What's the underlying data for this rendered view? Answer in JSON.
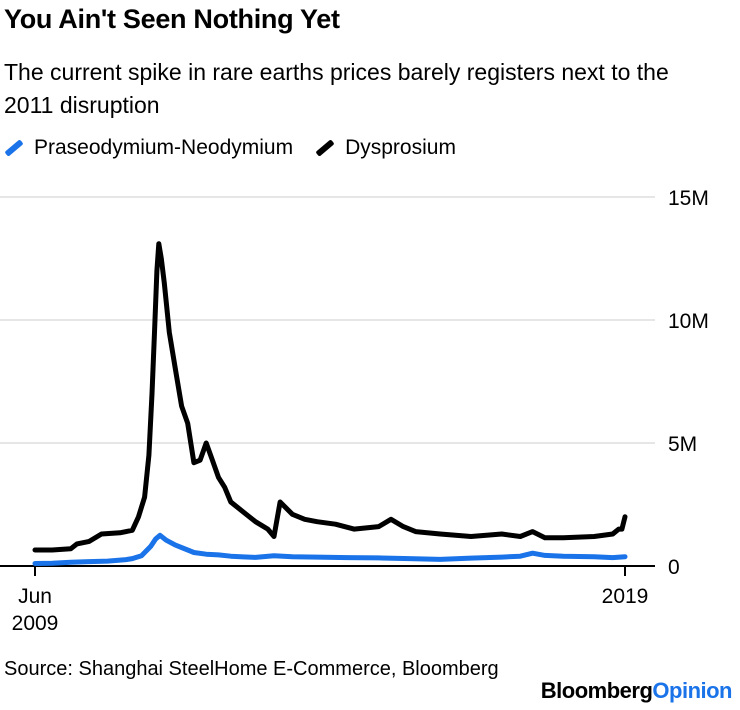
{
  "title": "You Ain't Seen Nothing Yet",
  "subtitle": "The current spike in rare earths prices barely registers next to the 2011 disruption",
  "source": "Source: Shanghai SteelHome E-Commerce, Bloomberg",
  "brand": {
    "part1": "Bloomberg",
    "part2": "Opinion"
  },
  "colors": {
    "prnd": "#1a73e8",
    "dy": "#000000",
    "grid": "#e6e6e6"
  },
  "chart_data": {
    "type": "line",
    "title": "You Ain't Seen Nothing Yet",
    "x_ticks": [
      {
        "x": 2009.42,
        "label": "Jun",
        "label2": "2009"
      },
      {
        "x": 2019.0,
        "label": "2019",
        "label2": ""
      }
    ],
    "y_ticks": [
      {
        "y": 0,
        "label": "0"
      },
      {
        "y": 5000000,
        "label": "5M"
      },
      {
        "y": 10000000,
        "label": "10M"
      },
      {
        "y": 15000000,
        "label": "15M"
      }
    ],
    "xlim": [
      2009.42,
      2019.0
    ],
    "ylim": [
      0,
      15000000
    ],
    "grid": true,
    "legend_position": "top-left",
    "series": [
      {
        "name": "Praseodymium-Neodymium",
        "color": "#1a73e8",
        "points": [
          [
            2009.42,
            100000
          ],
          [
            2009.7,
            110000
          ],
          [
            2010.0,
            150000
          ],
          [
            2010.3,
            180000
          ],
          [
            2010.6,
            200000
          ],
          [
            2010.9,
            260000
          ],
          [
            2011.0,
            300000
          ],
          [
            2011.15,
            420000
          ],
          [
            2011.3,
            800000
          ],
          [
            2011.38,
            1100000
          ],
          [
            2011.45,
            1250000
          ],
          [
            2011.55,
            1050000
          ],
          [
            2011.7,
            850000
          ],
          [
            2011.9,
            650000
          ],
          [
            2012.0,
            550000
          ],
          [
            2012.2,
            480000
          ],
          [
            2012.4,
            450000
          ],
          [
            2012.6,
            400000
          ],
          [
            2012.8,
            370000
          ],
          [
            2013.0,
            350000
          ],
          [
            2013.3,
            420000
          ],
          [
            2013.6,
            380000
          ],
          [
            2014.0,
            360000
          ],
          [
            2014.5,
            340000
          ],
          [
            2015.0,
            330000
          ],
          [
            2015.5,
            300000
          ],
          [
            2016.0,
            270000
          ],
          [
            2016.5,
            320000
          ],
          [
            2017.0,
            360000
          ],
          [
            2017.3,
            400000
          ],
          [
            2017.5,
            520000
          ],
          [
            2017.7,
            430000
          ],
          [
            2018.0,
            400000
          ],
          [
            2018.5,
            380000
          ],
          [
            2018.8,
            340000
          ],
          [
            2019.0,
            380000
          ]
        ]
      },
      {
        "name": "Dysprosium",
        "color": "#000000",
        "points": [
          [
            2009.42,
            650000
          ],
          [
            2009.7,
            650000
          ],
          [
            2010.0,
            700000
          ],
          [
            2010.1,
            900000
          ],
          [
            2010.3,
            1000000
          ],
          [
            2010.5,
            1300000
          ],
          [
            2010.8,
            1350000
          ],
          [
            2011.0,
            1450000
          ],
          [
            2011.1,
            2000000
          ],
          [
            2011.2,
            2800000
          ],
          [
            2011.27,
            4500000
          ],
          [
            2011.32,
            7000000
          ],
          [
            2011.36,
            9500000
          ],
          [
            2011.4,
            12000000
          ],
          [
            2011.43,
            13100000
          ],
          [
            2011.47,
            12500000
          ],
          [
            2011.52,
            11500000
          ],
          [
            2011.6,
            9500000
          ],
          [
            2011.7,
            8000000
          ],
          [
            2011.8,
            6500000
          ],
          [
            2011.9,
            5800000
          ],
          [
            2012.0,
            4200000
          ],
          [
            2012.1,
            4300000
          ],
          [
            2012.2,
            5000000
          ],
          [
            2012.3,
            4300000
          ],
          [
            2012.4,
            3600000
          ],
          [
            2012.5,
            3200000
          ],
          [
            2012.6,
            2600000
          ],
          [
            2012.8,
            2200000
          ],
          [
            2013.0,
            1800000
          ],
          [
            2013.2,
            1500000
          ],
          [
            2013.3,
            1200000
          ],
          [
            2013.4,
            2600000
          ],
          [
            2013.6,
            2100000
          ],
          [
            2013.8,
            1900000
          ],
          [
            2014.0,
            1800000
          ],
          [
            2014.3,
            1700000
          ],
          [
            2014.6,
            1500000
          ],
          [
            2015.0,
            1600000
          ],
          [
            2015.2,
            1900000
          ],
          [
            2015.4,
            1600000
          ],
          [
            2015.6,
            1400000
          ],
          [
            2016.0,
            1300000
          ],
          [
            2016.5,
            1200000
          ],
          [
            2017.0,
            1300000
          ],
          [
            2017.3,
            1200000
          ],
          [
            2017.5,
            1400000
          ],
          [
            2017.7,
            1150000
          ],
          [
            2018.0,
            1150000
          ],
          [
            2018.5,
            1200000
          ],
          [
            2018.8,
            1300000
          ],
          [
            2018.9,
            1500000
          ],
          [
            2018.95,
            1500000
          ],
          [
            2019.0,
            2000000
          ]
        ]
      }
    ]
  }
}
